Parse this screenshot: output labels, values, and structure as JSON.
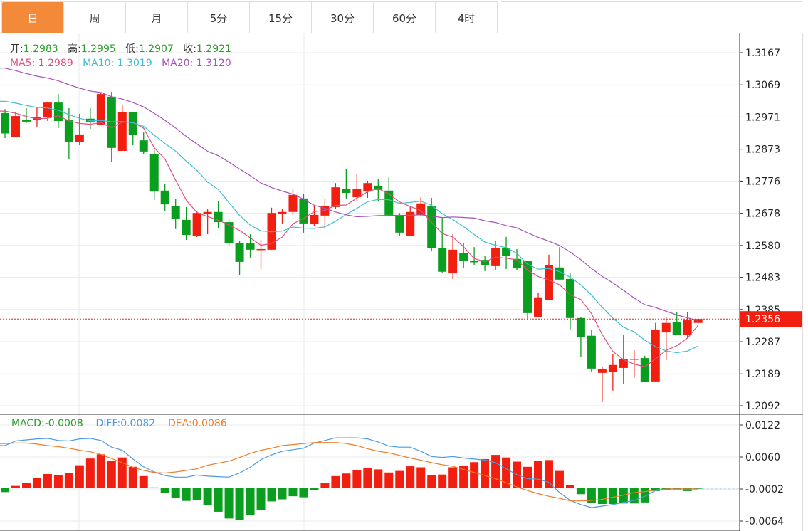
{
  "tabs": [
    {
      "label": "日",
      "active": true
    },
    {
      "label": "周",
      "active": false
    },
    {
      "label": "月",
      "active": false
    },
    {
      "label": "5分",
      "active": false
    },
    {
      "label": "15分",
      "active": false
    },
    {
      "label": "30分",
      "active": false
    },
    {
      "label": "60分",
      "active": false
    },
    {
      "label": "4时",
      "active": false
    }
  ],
  "ohlc_legend": {
    "open_label": "开:",
    "open": "1.2983",
    "high_label": "高:",
    "high": "1.2995",
    "low_label": "低:",
    "low": "1.2907",
    "close_label": "收:",
    "close": "1.2921"
  },
  "ma_legend": {
    "ma5_label": "MA5:",
    "ma5": "1.2989",
    "ma10_label": "MA10:",
    "ma10": "1.3019",
    "ma20_label": "MA20:",
    "ma20": "1.3120"
  },
  "macd_legend": {
    "macd_label": "MACD:",
    "macd": "-0.0008",
    "diff_label": "DIFF:",
    "diff": "0.0082",
    "dea_label": "DEA:",
    "dea": "0.0086"
  },
  "colors": {
    "up": "#f21f10",
    "down": "#0a9e1e",
    "ma5": "#e0507a",
    "ma10": "#3cbfd0",
    "ma20": "#a552b8",
    "diff": "#4a9be0",
    "dea": "#f07d2a",
    "tab_active": "#f28a3a",
    "legend_value": "#2a9d2a"
  },
  "chart_data": [
    {
      "type": "candlestick",
      "title": "",
      "last_price": "1.2356",
      "yticks": [
        "1.3167",
        "1.3069",
        "1.2971",
        "1.2873",
        "1.2776",
        "1.2678",
        "1.2580",
        "1.2483",
        "1.2385",
        "1.2287",
        "1.2189",
        "1.2092"
      ],
      "ylim": [
        1.2092,
        1.3167
      ],
      "ma_periods": [
        5,
        10,
        20
      ],
      "ohlc": [
        [
          1.2983,
          1.2995,
          1.2907,
          1.2921
        ],
        [
          1.2911,
          1.2985,
          1.2911,
          1.2974
        ],
        [
          1.2963,
          1.2998,
          1.2953,
          1.2957
        ],
        [
          1.2963,
          1.3,
          1.2942,
          1.297
        ],
        [
          1.297,
          1.3018,
          1.2959,
          1.3015
        ],
        [
          1.3015,
          1.3041,
          1.2937,
          1.2959
        ],
        [
          1.2961,
          1.2998,
          1.2844,
          1.2896
        ],
        [
          1.2896,
          1.2981,
          1.2885,
          1.2918
        ],
        [
          1.2966,
          1.2998,
          1.2935,
          1.2957
        ],
        [
          1.2946,
          1.3046,
          1.2946,
          1.3041
        ],
        [
          1.3033,
          1.3048,
          1.2835,
          1.2877
        ],
        [
          1.2868,
          1.3009,
          1.2868,
          1.2985
        ],
        [
          1.2985,
          1.2987,
          1.2885,
          1.2916
        ],
        [
          1.29,
          1.2924,
          1.2857,
          1.2866
        ],
        [
          1.2859,
          1.2872,
          1.2718,
          1.2744
        ],
        [
          1.2747,
          1.2768,
          1.2686,
          1.2705
        ],
        [
          1.2699,
          1.2721,
          1.263,
          1.2662
        ],
        [
          1.2658,
          1.2697,
          1.2597,
          1.2612
        ],
        [
          1.261,
          1.2684,
          1.2606,
          1.2679
        ],
        [
          1.2675,
          1.269,
          1.2614,
          1.2682
        ],
        [
          1.2682,
          1.2714,
          1.2632,
          1.2651
        ],
        [
          1.2651,
          1.266,
          1.2578,
          1.2586
        ],
        [
          1.2588,
          1.2595,
          1.2489,
          1.253
        ],
        [
          1.2586,
          1.2614,
          1.2543,
          1.2567
        ],
        [
          1.2567,
          1.2597,
          1.2508,
          1.2569
        ],
        [
          1.2567,
          1.2695,
          1.2567,
          1.2679
        ],
        [
          1.2677,
          1.269,
          1.2647,
          1.2682
        ],
        [
          1.2682,
          1.2751,
          1.2673,
          1.2734
        ],
        [
          1.2723,
          1.2736,
          1.2619,
          1.2647
        ],
        [
          1.2645,
          1.2699,
          1.2638,
          1.2673
        ],
        [
          1.2671,
          1.2721,
          1.263,
          1.2699
        ],
        [
          1.2697,
          1.277,
          1.2692,
          1.2757
        ],
        [
          1.2751,
          1.2812,
          1.2723,
          1.274
        ],
        [
          1.2727,
          1.2799,
          1.2716,
          1.2751
        ],
        [
          1.2744,
          1.2777,
          1.2725,
          1.277
        ],
        [
          1.2762,
          1.2781,
          1.2716,
          1.2749
        ],
        [
          1.2747,
          1.2788,
          1.2669,
          1.2673
        ],
        [
          1.2671,
          1.2679,
          1.261,
          1.2619
        ],
        [
          1.2608,
          1.2699,
          1.2608,
          1.2682
        ],
        [
          1.2673,
          1.2727,
          1.2669,
          1.2708
        ],
        [
          1.2699,
          1.2725,
          1.2562,
          1.2571
        ],
        [
          1.2573,
          1.2664,
          1.2497,
          1.25
        ],
        [
          1.2495,
          1.2614,
          1.2478,
          1.2567
        ],
        [
          1.2558,
          1.2588,
          1.251,
          1.2534
        ],
        [
          1.2532,
          1.2575,
          1.2519,
          1.253
        ],
        [
          1.2536,
          1.2547,
          1.2502,
          1.2519
        ],
        [
          1.2517,
          1.2593,
          1.2506,
          1.2573
        ],
        [
          1.2573,
          1.2606,
          1.2508,
          1.2549
        ],
        [
          1.2539,
          1.2569,
          1.2506,
          1.251
        ],
        [
          1.2534,
          1.2534,
          1.2354,
          1.2374
        ],
        [
          1.2363,
          1.2435,
          1.2363,
          1.2422
        ],
        [
          1.2413,
          1.2552,
          1.2413,
          1.2519
        ],
        [
          1.2513,
          1.2575,
          1.2476,
          1.2476
        ],
        [
          1.2478,
          1.2495,
          1.2324,
          1.2359
        ],
        [
          1.2359,
          1.2363,
          1.224,
          1.2302
        ],
        [
          1.2305,
          1.2322,
          1.2194,
          1.2205
        ],
        [
          1.2192,
          1.2211,
          1.2103,
          1.2203
        ],
        [
          1.2196,
          1.225,
          1.2138,
          1.2216
        ],
        [
          1.2207,
          1.2307,
          1.2159,
          1.2235
        ],
        [
          1.2233,
          1.2261,
          1.2177,
          1.2235
        ],
        [
          1.2237,
          1.2244,
          1.2164,
          1.2164
        ],
        [
          1.2166,
          1.2344,
          1.2164,
          1.2324
        ],
        [
          1.2315,
          1.2361,
          1.2231,
          1.2344
        ],
        [
          1.2346,
          1.2376,
          1.2307,
          1.2307
        ],
        [
          1.2307,
          1.2376,
          1.2298,
          1.2352
        ],
        [
          1.2344,
          1.2356,
          1.2344,
          1.2356
        ]
      ]
    },
    {
      "type": "bar+line",
      "title": "MACD",
      "yticks": [
        "0.0122",
        "0.0060",
        "-0.0002",
        "-0.0064"
      ],
      "ylim": [
        -0.0064,
        0.0122
      ],
      "macd": [
        -0.0008,
        0.0004,
        0.001,
        0.0019,
        0.0027,
        0.0025,
        0.0029,
        0.0044,
        0.0057,
        0.0065,
        0.0052,
        0.0059,
        0.0041,
        0.0023,
        0.0001,
        -0.001,
        -0.0019,
        -0.0025,
        -0.0023,
        -0.0033,
        -0.0046,
        -0.0059,
        -0.0062,
        -0.0053,
        -0.0043,
        -0.0026,
        -0.0022,
        -0.0016,
        -0.0018,
        -0.0004,
        0.0009,
        0.0023,
        0.0028,
        0.0035,
        0.0039,
        0.0036,
        0.003,
        0.0033,
        0.0042,
        0.004,
        0.0025,
        0.0026,
        0.004,
        0.0043,
        0.005,
        0.0056,
        0.0064,
        0.0059,
        0.0051,
        0.0041,
        0.0052,
        0.0054,
        0.0033,
        0.0006,
        -0.0012,
        -0.0029,
        -0.0031,
        -0.0031,
        -0.003,
        -0.003,
        -0.0028,
        -0.0006,
        -0.0004,
        -0.0003,
        -0.0006,
        -0.0001
      ],
      "diff": [
        0.0082,
        0.0091,
        0.0093,
        0.0095,
        0.0096,
        0.0092,
        0.0091,
        0.0095,
        0.0096,
        0.0092,
        0.0079,
        0.0073,
        0.0056,
        0.0041,
        0.0031,
        0.0024,
        0.0021,
        0.0021,
        0.0025,
        0.0023,
        0.0022,
        0.0021,
        0.0029,
        0.004,
        0.0055,
        0.0064,
        0.0071,
        0.0074,
        0.0077,
        0.0087,
        0.0092,
        0.0097,
        0.0097,
        0.0097,
        0.0095,
        0.0089,
        0.0081,
        0.0079,
        0.0079,
        0.0071,
        0.0061,
        0.0059,
        0.0061,
        0.0058,
        0.0056,
        0.0054,
        0.0049,
        0.0037,
        0.0026,
        0.0018,
        0.0017,
        0.0011,
        -0.0009,
        -0.0024,
        -0.0032,
        -0.0038,
        -0.0035,
        -0.0032,
        -0.0028,
        -0.0024,
        -0.0016,
        -0.0005,
        -0.0002,
        -0.0002,
        -0.0002,
        -0.0002
      ],
      "dea": [
        0.0086,
        0.0087,
        0.0087,
        0.0085,
        0.0082,
        0.008,
        0.0077,
        0.0073,
        0.007,
        0.0065,
        0.0057,
        0.0049,
        0.004,
        0.0034,
        0.003,
        0.0029,
        0.0031,
        0.0034,
        0.0037,
        0.0044,
        0.0048,
        0.0052,
        0.0059,
        0.0067,
        0.0073,
        0.0077,
        0.0082,
        0.0084,
        0.0086,
        0.0088,
        0.0088,
        0.0088,
        0.0086,
        0.0082,
        0.0076,
        0.0071,
        0.0068,
        0.0063,
        0.0058,
        0.0054,
        0.0049,
        0.0045,
        0.0042,
        0.0036,
        0.003,
        0.0024,
        0.0018,
        0.001,
        0.0002,
        -0.0005,
        -0.0011,
        -0.0016,
        -0.002,
        -0.0025,
        -0.0025,
        -0.0024,
        -0.0022,
        -0.0018,
        -0.0014,
        -0.0009,
        -0.0007,
        -0.0004,
        -0.0002,
        -0.0002,
        -0.0002,
        -0.0002
      ]
    }
  ]
}
